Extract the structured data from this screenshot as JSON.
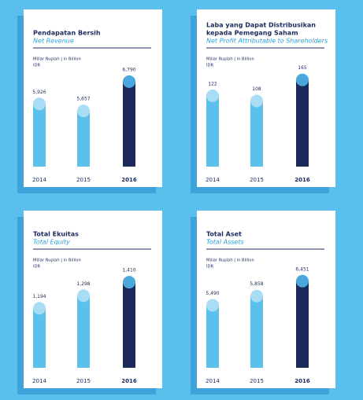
{
  "chart_data": [
    {
      "type": "bar",
      "title": [
        "Pendapatan Bersih"
      ],
      "subtitle": "Net Revenue",
      "unit": [
        "Miliar Rupiah | in Billion",
        "IDR"
      ],
      "categories": [
        "2014",
        "2015",
        "2016"
      ],
      "values": [
        5926,
        5657,
        6790
      ],
      "value_labels": [
        "5,926",
        "5,657",
        "6,790"
      ],
      "colors": [
        "#5bc0eb",
        "#5bc0eb",
        "#1b2a5a"
      ],
      "ylim": [
        3500,
        7000
      ]
    },
    {
      "type": "bar",
      "title": [
        "Laba yang Dapat Distribusikan",
        "kepada Pemegang Saham"
      ],
      "subtitle": "Net Profit Attributable to Shareholders",
      "unit": [
        "Miliar Rupiah | in Billion",
        "IDR"
      ],
      "categories": [
        "2014",
        "2015",
        "2016"
      ],
      "values": [
        122,
        108,
        165
      ],
      "colors": [
        "#5bc0eb",
        "#5bc0eb",
        "#1b2a5a"
      ],
      "ylim": [
        -70,
        175
      ]
    },
    {
      "type": "bar",
      "title": [
        "Total Ekuitas"
      ],
      "subtitle": "Total Equity",
      "unit": [
        "Miliar Rupiah | in Billion",
        "IDR"
      ],
      "categories": [
        "2014",
        "2015",
        "2016"
      ],
      "values": [
        1194,
        1298,
        1410
      ],
      "value_labels": [
        "1,194",
        "1,298",
        "1,410"
      ],
      "colors": [
        "#5bc0eb",
        "#5bc0eb",
        "#1b2a5a"
      ],
      "ylim": [
        700,
        1450
      ]
    },
    {
      "type": "bar",
      "title": [
        "Total Aset"
      ],
      "subtitle": "Total Assets",
      "unit": [
        "Miliar Rupiah | in Billion",
        "IDR"
      ],
      "categories": [
        "2014",
        "2015",
        "2016"
      ],
      "values": [
        5490,
        5858,
        6451
      ],
      "value_labels": [
        "5,490",
        "5,858",
        "6,451"
      ],
      "colors": [
        "#5bc0eb",
        "#5bc0eb",
        "#1b2a5a"
      ],
      "ylim": [
        3000,
        6600
      ]
    }
  ]
}
